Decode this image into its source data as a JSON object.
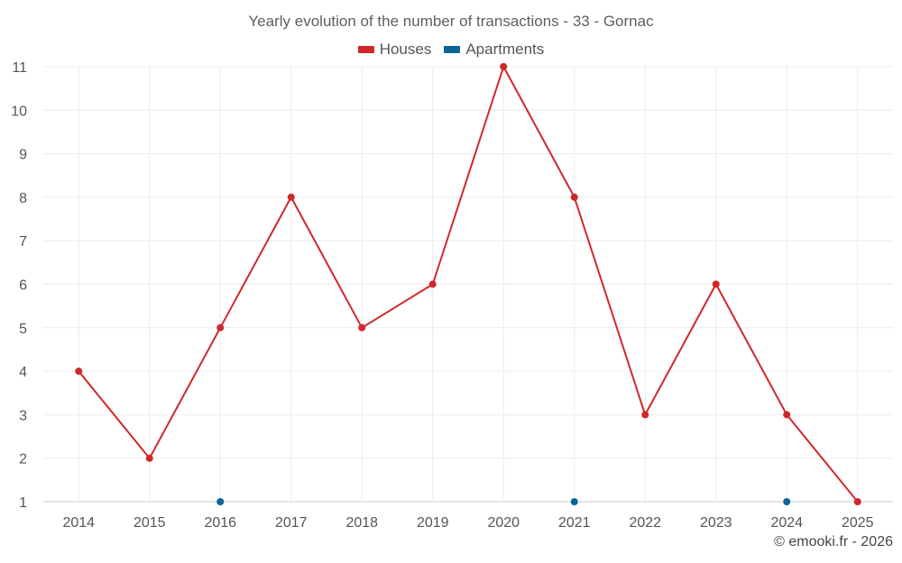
{
  "title": "Yearly evolution of the number of transactions - 33 - Gornac",
  "credit": "© emooki.fr - 2026",
  "colors": {
    "houses": "#d0282a",
    "apartments": "#0b6496",
    "grid": "#ebebeb"
  },
  "chart_data": {
    "type": "line",
    "title": "Yearly evolution of the number of transactions - 33 - Gornac",
    "categories": [
      "2014",
      "2015",
      "2016",
      "2017",
      "2018",
      "2019",
      "2020",
      "2021",
      "2022",
      "2023",
      "2024",
      "2025"
    ],
    "series": [
      {
        "name": "Houses",
        "color": "#d0282a",
        "mode": "line+markers",
        "values": [
          4,
          2,
          5,
          8,
          5,
          6,
          11,
          8,
          3,
          6,
          3,
          1
        ]
      },
      {
        "name": "Apartments",
        "color": "#0b6496",
        "mode": "markers",
        "values": [
          null,
          null,
          1,
          null,
          null,
          null,
          null,
          1,
          null,
          null,
          1,
          null
        ]
      }
    ],
    "ylim": [
      1,
      11
    ],
    "yticks": [
      1,
      2,
      3,
      4,
      5,
      6,
      7,
      8,
      9,
      10,
      11
    ],
    "grid": true,
    "legend": "top-center",
    "xlabel": "",
    "ylabel": ""
  }
}
